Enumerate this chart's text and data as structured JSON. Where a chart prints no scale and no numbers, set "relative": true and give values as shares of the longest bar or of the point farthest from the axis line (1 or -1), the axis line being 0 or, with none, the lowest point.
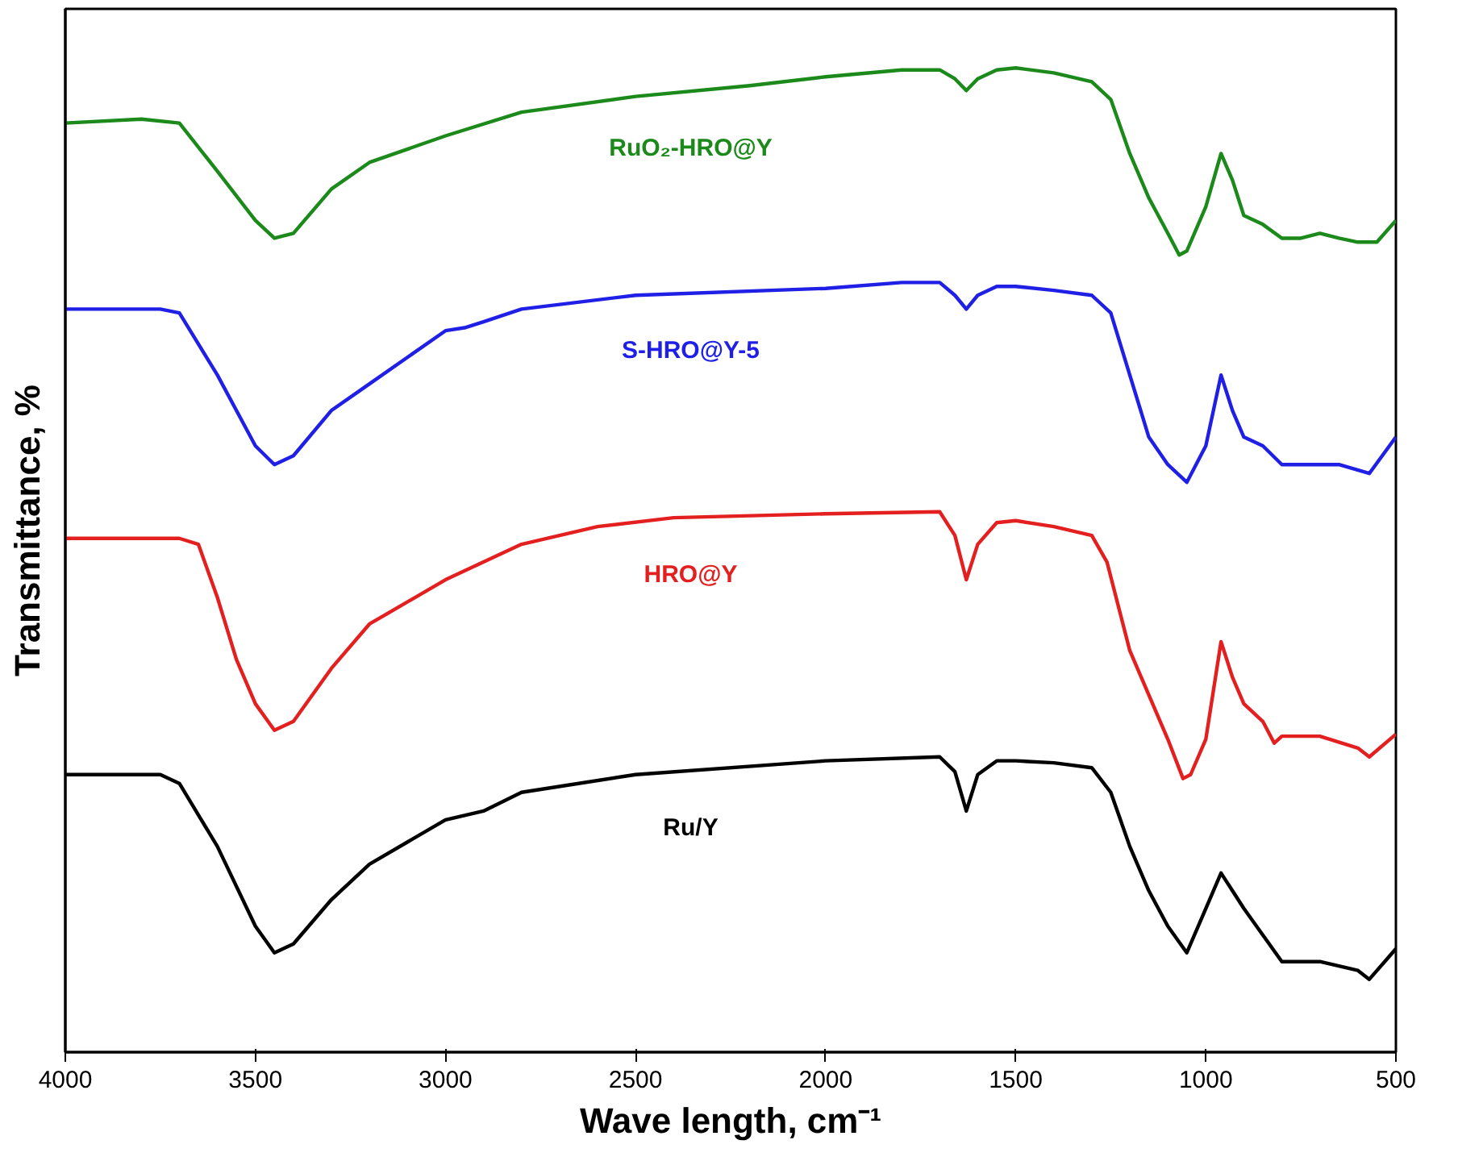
{
  "chart_data": {
    "type": "line",
    "relative": true,
    "xlabel": "Wave length, cm⁻¹",
    "ylabel": "Transmittance, %",
    "xlim": [
      4000,
      500
    ],
    "xticks": [
      4000,
      3500,
      3000,
      2500,
      2000,
      1500,
      1000,
      500
    ],
    "grid": false,
    "tick_labels": "x",
    "line_style": "solid",
    "marker": "none",
    "series": [
      {
        "name": "RuO₂-HRO@Y",
        "color": "#1b8a1b",
        "x": [
          4000,
          3800,
          3700,
          3600,
          3500,
          3450,
          3400,
          3300,
          3200,
          3000,
          2800,
          2500,
          2200,
          2000,
          1800,
          1700,
          1660,
          1630,
          1600,
          1550,
          1500,
          1400,
          1300,
          1250,
          1200,
          1150,
          1100,
          1070,
          1050,
          1000,
          960,
          930,
          900,
          850,
          800,
          750,
          700,
          650,
          600,
          550,
          500
        ],
        "values": [
          0.944,
          0.948,
          0.944,
          0.895,
          0.845,
          0.827,
          0.832,
          0.877,
          0.904,
          0.931,
          0.955,
          0.971,
          0.982,
          0.991,
          0.998,
          0.998,
          0.989,
          0.977,
          0.989,
          0.998,
          1.0,
          0.995,
          0.986,
          0.968,
          0.913,
          0.868,
          0.832,
          0.81,
          0.814,
          0.859,
          0.913,
          0.886,
          0.85,
          0.841,
          0.827,
          0.827,
          0.832,
          0.827,
          0.823,
          0.823,
          0.845
        ]
      },
      {
        "name": "S-HRO@Y-5",
        "color": "#1f1fe6",
        "x": [
          4000,
          3750,
          3700,
          3600,
          3500,
          3450,
          3400,
          3300,
          3200,
          3000,
          2950,
          2900,
          2800,
          2500,
          2000,
          1800,
          1700,
          1660,
          1630,
          1600,
          1550,
          1500,
          1400,
          1300,
          1250,
          1200,
          1150,
          1100,
          1050,
          1000,
          960,
          930,
          900,
          850,
          800,
          700,
          650,
          570,
          500
        ],
        "values": [
          0.755,
          0.755,
          0.751,
          0.688,
          0.616,
          0.597,
          0.606,
          0.652,
          0.679,
          0.733,
          0.736,
          0.742,
          0.755,
          0.769,
          0.776,
          0.782,
          0.782,
          0.769,
          0.755,
          0.769,
          0.778,
          0.778,
          0.774,
          0.769,
          0.751,
          0.688,
          0.625,
          0.597,
          0.579,
          0.616,
          0.688,
          0.652,
          0.625,
          0.616,
          0.597,
          0.597,
          0.597,
          0.588,
          0.625
        ]
      },
      {
        "name": "HRO@Y",
        "color": "#e3201f",
        "x": [
          4000,
          3700,
          3650,
          3600,
          3550,
          3500,
          3450,
          3400,
          3300,
          3200,
          3000,
          2800,
          2600,
          2400,
          2000,
          1700,
          1660,
          1630,
          1600,
          1550,
          1500,
          1400,
          1300,
          1260,
          1200,
          1150,
          1100,
          1060,
          1040,
          1000,
          960,
          930,
          900,
          850,
          820,
          800,
          700,
          600,
          570,
          500
        ],
        "values": [
          0.522,
          0.522,
          0.516,
          0.462,
          0.399,
          0.354,
          0.327,
          0.336,
          0.39,
          0.435,
          0.48,
          0.516,
          0.534,
          0.543,
          0.547,
          0.549,
          0.525,
          0.48,
          0.516,
          0.538,
          0.54,
          0.534,
          0.525,
          0.498,
          0.408,
          0.363,
          0.318,
          0.278,
          0.282,
          0.318,
          0.417,
          0.381,
          0.354,
          0.336,
          0.314,
          0.321,
          0.321,
          0.309,
          0.3,
          0.323
        ]
      },
      {
        "name": "Ru/Y",
        "color": "#000000",
        "x": [
          4000,
          3750,
          3700,
          3600,
          3500,
          3450,
          3400,
          3300,
          3200,
          3000,
          2900,
          2800,
          2500,
          2000,
          1700,
          1660,
          1630,
          1600,
          1550,
          1500,
          1400,
          1300,
          1250,
          1200,
          1150,
          1100,
          1050,
          1000,
          960,
          930,
          900,
          850,
          800,
          700,
          600,
          570,
          500
        ],
        "values": [
          0.282,
          0.282,
          0.273,
          0.209,
          0.128,
          0.101,
          0.11,
          0.155,
          0.191,
          0.236,
          0.245,
          0.264,
          0.282,
          0.296,
          0.3,
          0.285,
          0.245,
          0.282,
          0.296,
          0.296,
          0.294,
          0.289,
          0.264,
          0.209,
          0.164,
          0.128,
          0.101,
          0.146,
          0.182,
          0.164,
          0.146,
          0.119,
          0.092,
          0.092,
          0.083,
          0.074,
          0.105
        ]
      }
    ]
  }
}
